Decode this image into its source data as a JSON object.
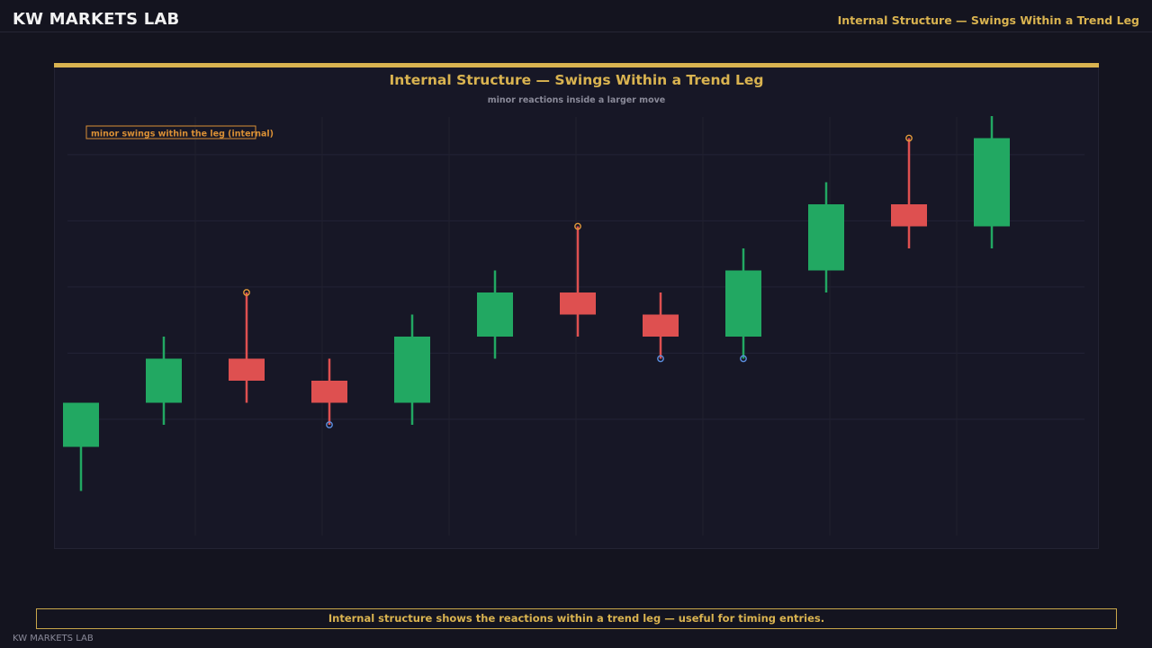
{
  "header": {
    "brand": "KW MARKETS LAB",
    "title": "Internal Structure — Swings Within a Trend Leg"
  },
  "chart": {
    "title": "Internal Structure — Swings Within a Trend Leg",
    "subtitle": "minor reactions inside a larger move",
    "annotation": "minor swings within the leg (internal)"
  },
  "footer": {
    "caption": "Internal structure shows the reactions within a trend leg — useful for timing entries.",
    "brand": "KW MARKETS LAB"
  },
  "colors": {
    "up": "#22a862",
    "down": "#de5050",
    "swing_high": "#e39a3a",
    "swing_low": "#5b8fe0",
    "accent": "#d9b350"
  },
  "chart_data": {
    "type": "candlestick",
    "ylim": [
      -1.5,
      16
    ],
    "grid": true,
    "candles": [
      {
        "open": 1.0,
        "high": 3.0,
        "low": -1.0,
        "close": 3.0
      },
      {
        "open": 3.0,
        "high": 6.0,
        "low": 2.0,
        "close": 5.0
      },
      {
        "open": 5.0,
        "high": 8.0,
        "low": 3.0,
        "close": 4.0
      },
      {
        "open": 4.0,
        "high": 5.0,
        "low": 2.0,
        "close": 3.0
      },
      {
        "open": 3.0,
        "high": 7.0,
        "low": 2.0,
        "close": 6.0
      },
      {
        "open": 6.0,
        "high": 9.0,
        "low": 5.0,
        "close": 8.0
      },
      {
        "open": 8.0,
        "high": 11.0,
        "low": 6.0,
        "close": 7.0
      },
      {
        "open": 7.0,
        "high": 8.0,
        "low": 5.0,
        "close": 6.0
      },
      {
        "open": 6.0,
        "high": 10.0,
        "low": 5.0,
        "close": 9.0
      },
      {
        "open": 9.0,
        "high": 13.0,
        "low": 8.0,
        "close": 12.0
      },
      {
        "open": 12.0,
        "high": 15.0,
        "low": 10.0,
        "close": 11.0
      },
      {
        "open": 11.0,
        "high": 16.0,
        "low": 10.0,
        "close": 15.0
      }
    ],
    "swing_highs": [
      {
        "index": 2,
        "price": 8.0
      },
      {
        "index": 6,
        "price": 11.0
      },
      {
        "index": 10,
        "price": 15.0
      }
    ],
    "swing_lows": [
      {
        "index": 3,
        "price": 2.0
      },
      {
        "index": 7,
        "price": 5.0
      },
      {
        "index": 8,
        "price": 5.0
      }
    ]
  }
}
